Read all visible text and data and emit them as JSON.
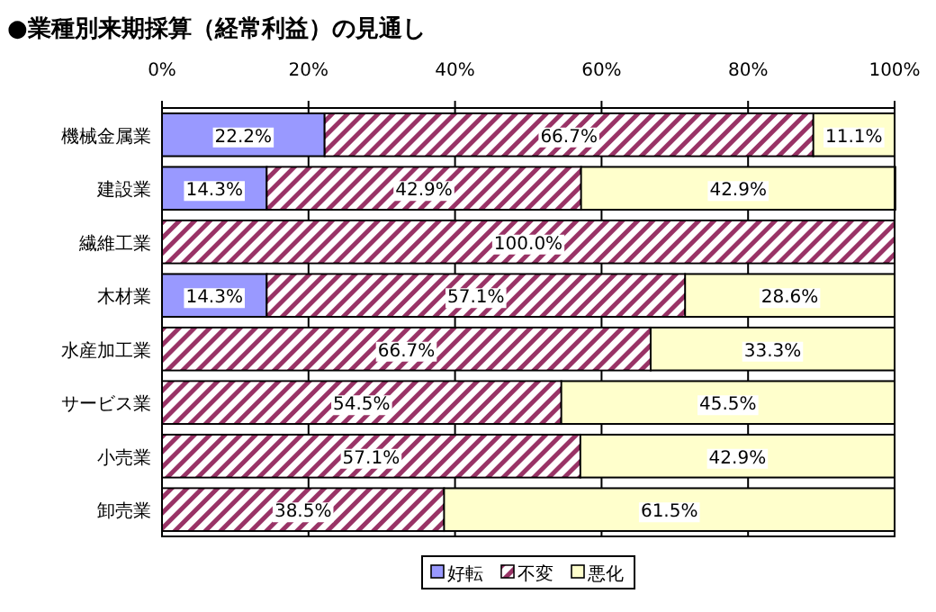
{
  "chart_data": {
    "type": "bar",
    "orientation": "horizontal",
    "stacked": true,
    "title": "●業種別来期採算（経常利益）の見通し",
    "categories": [
      "機械金属業",
      "建設業",
      "繊維工業",
      "木材業",
      "水産加工業",
      "サービス業",
      "小売業",
      "卸売業"
    ],
    "series": [
      {
        "name": "好転",
        "color": "#9999ff",
        "values": [
          22.2,
          14.3,
          0,
          14.3,
          0,
          0,
          0,
          0
        ],
        "value_labels": [
          "22.2%",
          "14.3%",
          null,
          "14.3%",
          null,
          null,
          null,
          null
        ]
      },
      {
        "name": "不変",
        "color": "#993366",
        "values": [
          66.7,
          42.9,
          100,
          57.1,
          66.7,
          54.5,
          57.1,
          38.5
        ],
        "value_labels": [
          "66.7%",
          "42.9%",
          "100.0%",
          "57.1%",
          "66.7%",
          "54.5%",
          "57.1%",
          "38.5%"
        ]
      },
      {
        "name": "悪化",
        "color": "#ffffcc",
        "values": [
          11.1,
          42.9,
          0,
          28.6,
          33.3,
          45.5,
          42.9,
          61.5
        ],
        "value_labels": [
          "11.1%",
          "42.9%",
          null,
          "28.6%",
          "33.3%",
          "45.5%",
          "42.9%",
          "61.5%"
        ]
      }
    ],
    "xlim": [
      0,
      100
    ],
    "xticks": [
      {
        "value": 0,
        "label": "0%"
      },
      {
        "value": 20,
        "label": "20%"
      },
      {
        "value": 40,
        "label": "40%"
      },
      {
        "value": 60,
        "label": "60%"
      },
      {
        "value": 80,
        "label": "80%"
      },
      {
        "value": 100,
        "label": "100%"
      }
    ],
    "grid": "x",
    "legend": "bottom"
  }
}
